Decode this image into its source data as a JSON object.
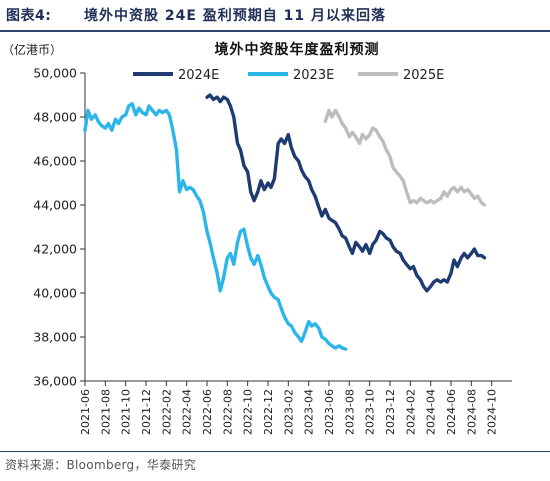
{
  "figure": {
    "label": "图表4:",
    "title": "境外中资股 24E 盈利预期自 11 月以来回落",
    "source": "资料来源：Bloomberg，华泰研究"
  },
  "colors": {
    "series_2024E": "#1f3b73",
    "series_2023E": "#2bb5ea",
    "series_2025E": "#bdbdbd",
    "axis": "#333333",
    "header": "#1f2f57"
  },
  "chart_data": {
    "type": "line",
    "title": "境外中资股年度盈利预测",
    "unit_label": "（亿港币）",
    "ylim": [
      36000,
      50000
    ],
    "y_ticks": [
      "36,000",
      "38,000",
      "40,000",
      "42,000",
      "44,000",
      "46,000",
      "48,000",
      "50,000"
    ],
    "y_tick_values": [
      36000,
      38000,
      40000,
      42000,
      44000,
      46000,
      48000,
      50000
    ],
    "xlim": [
      "2021-06",
      "2024-12"
    ],
    "x_ticks": [
      "2021-06",
      "2021-08",
      "2021-10",
      "2021-12",
      "2022-02",
      "2022-04",
      "2022-06",
      "2022-08",
      "2022-10",
      "2022-12",
      "2023-02",
      "2023-04",
      "2023-06",
      "2023-08",
      "2023-10",
      "2023-12",
      "2024-02",
      "2024-04",
      "2024-06",
      "2024-08",
      "2024-10"
    ],
    "grid": false,
    "legend_position": "top",
    "series": [
      {
        "name": "2024E",
        "color": "#1f3b73",
        "points": [
          [
            "2022-06-01",
            48900
          ],
          [
            "2022-06-10",
            49000
          ],
          [
            "2022-06-20",
            48800
          ],
          [
            "2022-07-01",
            48900
          ],
          [
            "2022-07-10",
            48700
          ],
          [
            "2022-07-20",
            48900
          ],
          [
            "2022-08-01",
            48800
          ],
          [
            "2022-08-10",
            48500
          ],
          [
            "2022-08-20",
            48000
          ],
          [
            "2022-09-01",
            46800
          ],
          [
            "2022-09-10",
            46500
          ],
          [
            "2022-09-20",
            45800
          ],
          [
            "2022-10-01",
            45500
          ],
          [
            "2022-10-10",
            44600
          ],
          [
            "2022-10-20",
            44200
          ],
          [
            "2022-11-01",
            44600
          ],
          [
            "2022-11-10",
            45100
          ],
          [
            "2022-11-20",
            44700
          ],
          [
            "2022-12-01",
            45000
          ],
          [
            "2022-12-10",
            44800
          ],
          [
            "2022-12-20",
            45200
          ],
          [
            "2023-01-01",
            46800
          ],
          [
            "2023-01-10",
            47000
          ],
          [
            "2023-01-20",
            46800
          ],
          [
            "2023-02-01",
            47200
          ],
          [
            "2023-02-10",
            46600
          ],
          [
            "2023-02-20",
            46200
          ],
          [
            "2023-03-01",
            46000
          ],
          [
            "2023-03-10",
            45600
          ],
          [
            "2023-03-20",
            45300
          ],
          [
            "2023-04-01",
            45100
          ],
          [
            "2023-04-10",
            44700
          ],
          [
            "2023-04-20",
            44400
          ],
          [
            "2023-05-01",
            43900
          ],
          [
            "2023-05-10",
            43500
          ],
          [
            "2023-05-20",
            43800
          ],
          [
            "2023-06-01",
            43400
          ],
          [
            "2023-06-10",
            43300
          ],
          [
            "2023-06-20",
            43200
          ],
          [
            "2023-07-01",
            42900
          ],
          [
            "2023-07-10",
            42600
          ],
          [
            "2023-07-20",
            42500
          ],
          [
            "2023-08-01",
            42100
          ],
          [
            "2023-08-10",
            41800
          ],
          [
            "2023-08-20",
            42300
          ],
          [
            "2023-09-01",
            42100
          ],
          [
            "2023-09-10",
            41900
          ],
          [
            "2023-09-20",
            42200
          ],
          [
            "2023-10-01",
            41800
          ],
          [
            "2023-10-10",
            42200
          ],
          [
            "2023-10-20",
            42400
          ],
          [
            "2023-11-01",
            42800
          ],
          [
            "2023-11-10",
            42700
          ],
          [
            "2023-11-20",
            42500
          ],
          [
            "2023-12-01",
            42400
          ],
          [
            "2023-12-10",
            42100
          ],
          [
            "2023-12-20",
            41900
          ],
          [
            "2024-01-01",
            41800
          ],
          [
            "2024-01-10",
            41500
          ],
          [
            "2024-01-20",
            41300
          ],
          [
            "2024-02-01",
            41100
          ],
          [
            "2024-02-10",
            41200
          ],
          [
            "2024-02-20",
            40800
          ],
          [
            "2024-03-01",
            40600
          ],
          [
            "2024-03-10",
            40300
          ],
          [
            "2024-03-20",
            40100
          ],
          [
            "2024-04-01",
            40300
          ],
          [
            "2024-04-10",
            40500
          ],
          [
            "2024-04-20",
            40600
          ],
          [
            "2024-05-01",
            40500
          ],
          [
            "2024-05-10",
            40600
          ],
          [
            "2024-05-20",
            40500
          ],
          [
            "2024-06-01",
            40900
          ],
          [
            "2024-06-10",
            41500
          ],
          [
            "2024-06-20",
            41200
          ],
          [
            "2024-07-01",
            41600
          ],
          [
            "2024-07-10",
            41800
          ],
          [
            "2024-07-20",
            41600
          ],
          [
            "2024-08-01",
            41800
          ],
          [
            "2024-08-10",
            42000
          ],
          [
            "2024-08-20",
            41700
          ],
          [
            "2024-09-01",
            41700
          ],
          [
            "2024-09-10",
            41600
          ]
        ]
      },
      {
        "name": "2023E",
        "color": "#2bb5ea",
        "points": [
          [
            "2021-06-01",
            47400
          ],
          [
            "2021-06-10",
            48300
          ],
          [
            "2021-06-20",
            47900
          ],
          [
            "2021-07-01",
            48100
          ],
          [
            "2021-07-10",
            47800
          ],
          [
            "2021-07-20",
            47600
          ],
          [
            "2021-08-01",
            47500
          ],
          [
            "2021-08-10",
            47700
          ],
          [
            "2021-08-20",
            47400
          ],
          [
            "2021-09-01",
            47900
          ],
          [
            "2021-09-10",
            47700
          ],
          [
            "2021-09-20",
            48000
          ],
          [
            "2021-10-01",
            48100
          ],
          [
            "2021-10-10",
            48500
          ],
          [
            "2021-10-20",
            48600
          ],
          [
            "2021-11-01",
            48100
          ],
          [
            "2021-11-10",
            48400
          ],
          [
            "2021-11-20",
            48200
          ],
          [
            "2021-12-01",
            48100
          ],
          [
            "2021-12-10",
            48500
          ],
          [
            "2021-12-20",
            48300
          ],
          [
            "2022-01-01",
            48100
          ],
          [
            "2022-01-10",
            48300
          ],
          [
            "2022-01-20",
            48200
          ],
          [
            "2022-02-01",
            48300
          ],
          [
            "2022-02-10",
            48100
          ],
          [
            "2022-02-20",
            47400
          ],
          [
            "2022-03-01",
            46500
          ],
          [
            "2022-03-10",
            44600
          ],
          [
            "2022-03-20",
            45100
          ],
          [
            "2022-04-01",
            44700
          ],
          [
            "2022-04-10",
            44800
          ],
          [
            "2022-04-20",
            44700
          ],
          [
            "2022-05-01",
            44400
          ],
          [
            "2022-05-10",
            44200
          ],
          [
            "2022-05-20",
            43700
          ],
          [
            "2022-06-01",
            42800
          ],
          [
            "2022-06-10",
            42300
          ],
          [
            "2022-06-20",
            41600
          ],
          [
            "2022-07-01",
            40900
          ],
          [
            "2022-07-10",
            40100
          ],
          [
            "2022-07-20",
            40700
          ],
          [
            "2022-08-01",
            41600
          ],
          [
            "2022-08-10",
            41800
          ],
          [
            "2022-08-20",
            41300
          ],
          [
            "2022-09-01",
            42300
          ],
          [
            "2022-09-10",
            42800
          ],
          [
            "2022-09-20",
            42900
          ],
          [
            "2022-10-01",
            42100
          ],
          [
            "2022-10-10",
            41600
          ],
          [
            "2022-10-20",
            41300
          ],
          [
            "2022-11-01",
            41700
          ],
          [
            "2022-11-10",
            41300
          ],
          [
            "2022-11-20",
            40700
          ],
          [
            "2022-12-01",
            40300
          ],
          [
            "2022-12-10",
            40000
          ],
          [
            "2022-12-20",
            39800
          ],
          [
            "2023-01-01",
            39700
          ],
          [
            "2023-01-10",
            39300
          ],
          [
            "2023-01-20",
            38900
          ],
          [
            "2023-02-01",
            38600
          ],
          [
            "2023-02-10",
            38500
          ],
          [
            "2023-02-20",
            38200
          ],
          [
            "2023-03-01",
            38000
          ],
          [
            "2023-03-10",
            37800
          ],
          [
            "2023-03-20",
            38200
          ],
          [
            "2023-04-01",
            38700
          ],
          [
            "2023-04-10",
            38500
          ],
          [
            "2023-04-20",
            38600
          ],
          [
            "2023-05-01",
            38400
          ],
          [
            "2023-05-10",
            38000
          ],
          [
            "2023-05-20",
            37900
          ],
          [
            "2023-06-01",
            37700
          ],
          [
            "2023-06-10",
            37600
          ],
          [
            "2023-06-20",
            37500
          ],
          [
            "2023-07-01",
            37600
          ],
          [
            "2023-07-10",
            37500
          ],
          [
            "2023-07-20",
            37450
          ]
        ]
      },
      {
        "name": "2025E",
        "color": "#bdbdbd",
        "points": [
          [
            "2023-05-20",
            47800
          ],
          [
            "2023-06-01",
            48300
          ],
          [
            "2023-06-10",
            48000
          ],
          [
            "2023-06-20",
            48300
          ],
          [
            "2023-07-01",
            48000
          ],
          [
            "2023-07-10",
            47700
          ],
          [
            "2023-07-20",
            47500
          ],
          [
            "2023-08-01",
            47100
          ],
          [
            "2023-08-10",
            47300
          ],
          [
            "2023-08-20",
            47100
          ],
          [
            "2023-09-01",
            46800
          ],
          [
            "2023-09-10",
            47200
          ],
          [
            "2023-09-20",
            47000
          ],
          [
            "2023-10-01",
            47200
          ],
          [
            "2023-10-10",
            47500
          ],
          [
            "2023-10-20",
            47400
          ],
          [
            "2023-11-01",
            47100
          ],
          [
            "2023-11-10",
            46900
          ],
          [
            "2023-11-20",
            46500
          ],
          [
            "2023-12-01",
            46200
          ],
          [
            "2023-12-10",
            45700
          ],
          [
            "2023-12-20",
            45500
          ],
          [
            "2024-01-01",
            45300
          ],
          [
            "2024-01-10",
            45100
          ],
          [
            "2024-01-20",
            44600
          ],
          [
            "2024-02-01",
            44100
          ],
          [
            "2024-02-10",
            44200
          ],
          [
            "2024-02-20",
            44100
          ],
          [
            "2024-03-01",
            44300
          ],
          [
            "2024-03-10",
            44200
          ],
          [
            "2024-03-20",
            44100
          ],
          [
            "2024-04-01",
            44200
          ],
          [
            "2024-04-10",
            44100
          ],
          [
            "2024-04-20",
            44200
          ],
          [
            "2024-05-01",
            44300
          ],
          [
            "2024-05-10",
            44600
          ],
          [
            "2024-05-20",
            44400
          ],
          [
            "2024-06-01",
            44700
          ],
          [
            "2024-06-10",
            44800
          ],
          [
            "2024-06-20",
            44600
          ],
          [
            "2024-07-01",
            44800
          ],
          [
            "2024-07-10",
            44600
          ],
          [
            "2024-07-20",
            44700
          ],
          [
            "2024-08-01",
            44500
          ],
          [
            "2024-08-10",
            44300
          ],
          [
            "2024-08-20",
            44400
          ],
          [
            "2024-09-01",
            44100
          ],
          [
            "2024-09-10",
            44000
          ]
        ]
      }
    ]
  }
}
